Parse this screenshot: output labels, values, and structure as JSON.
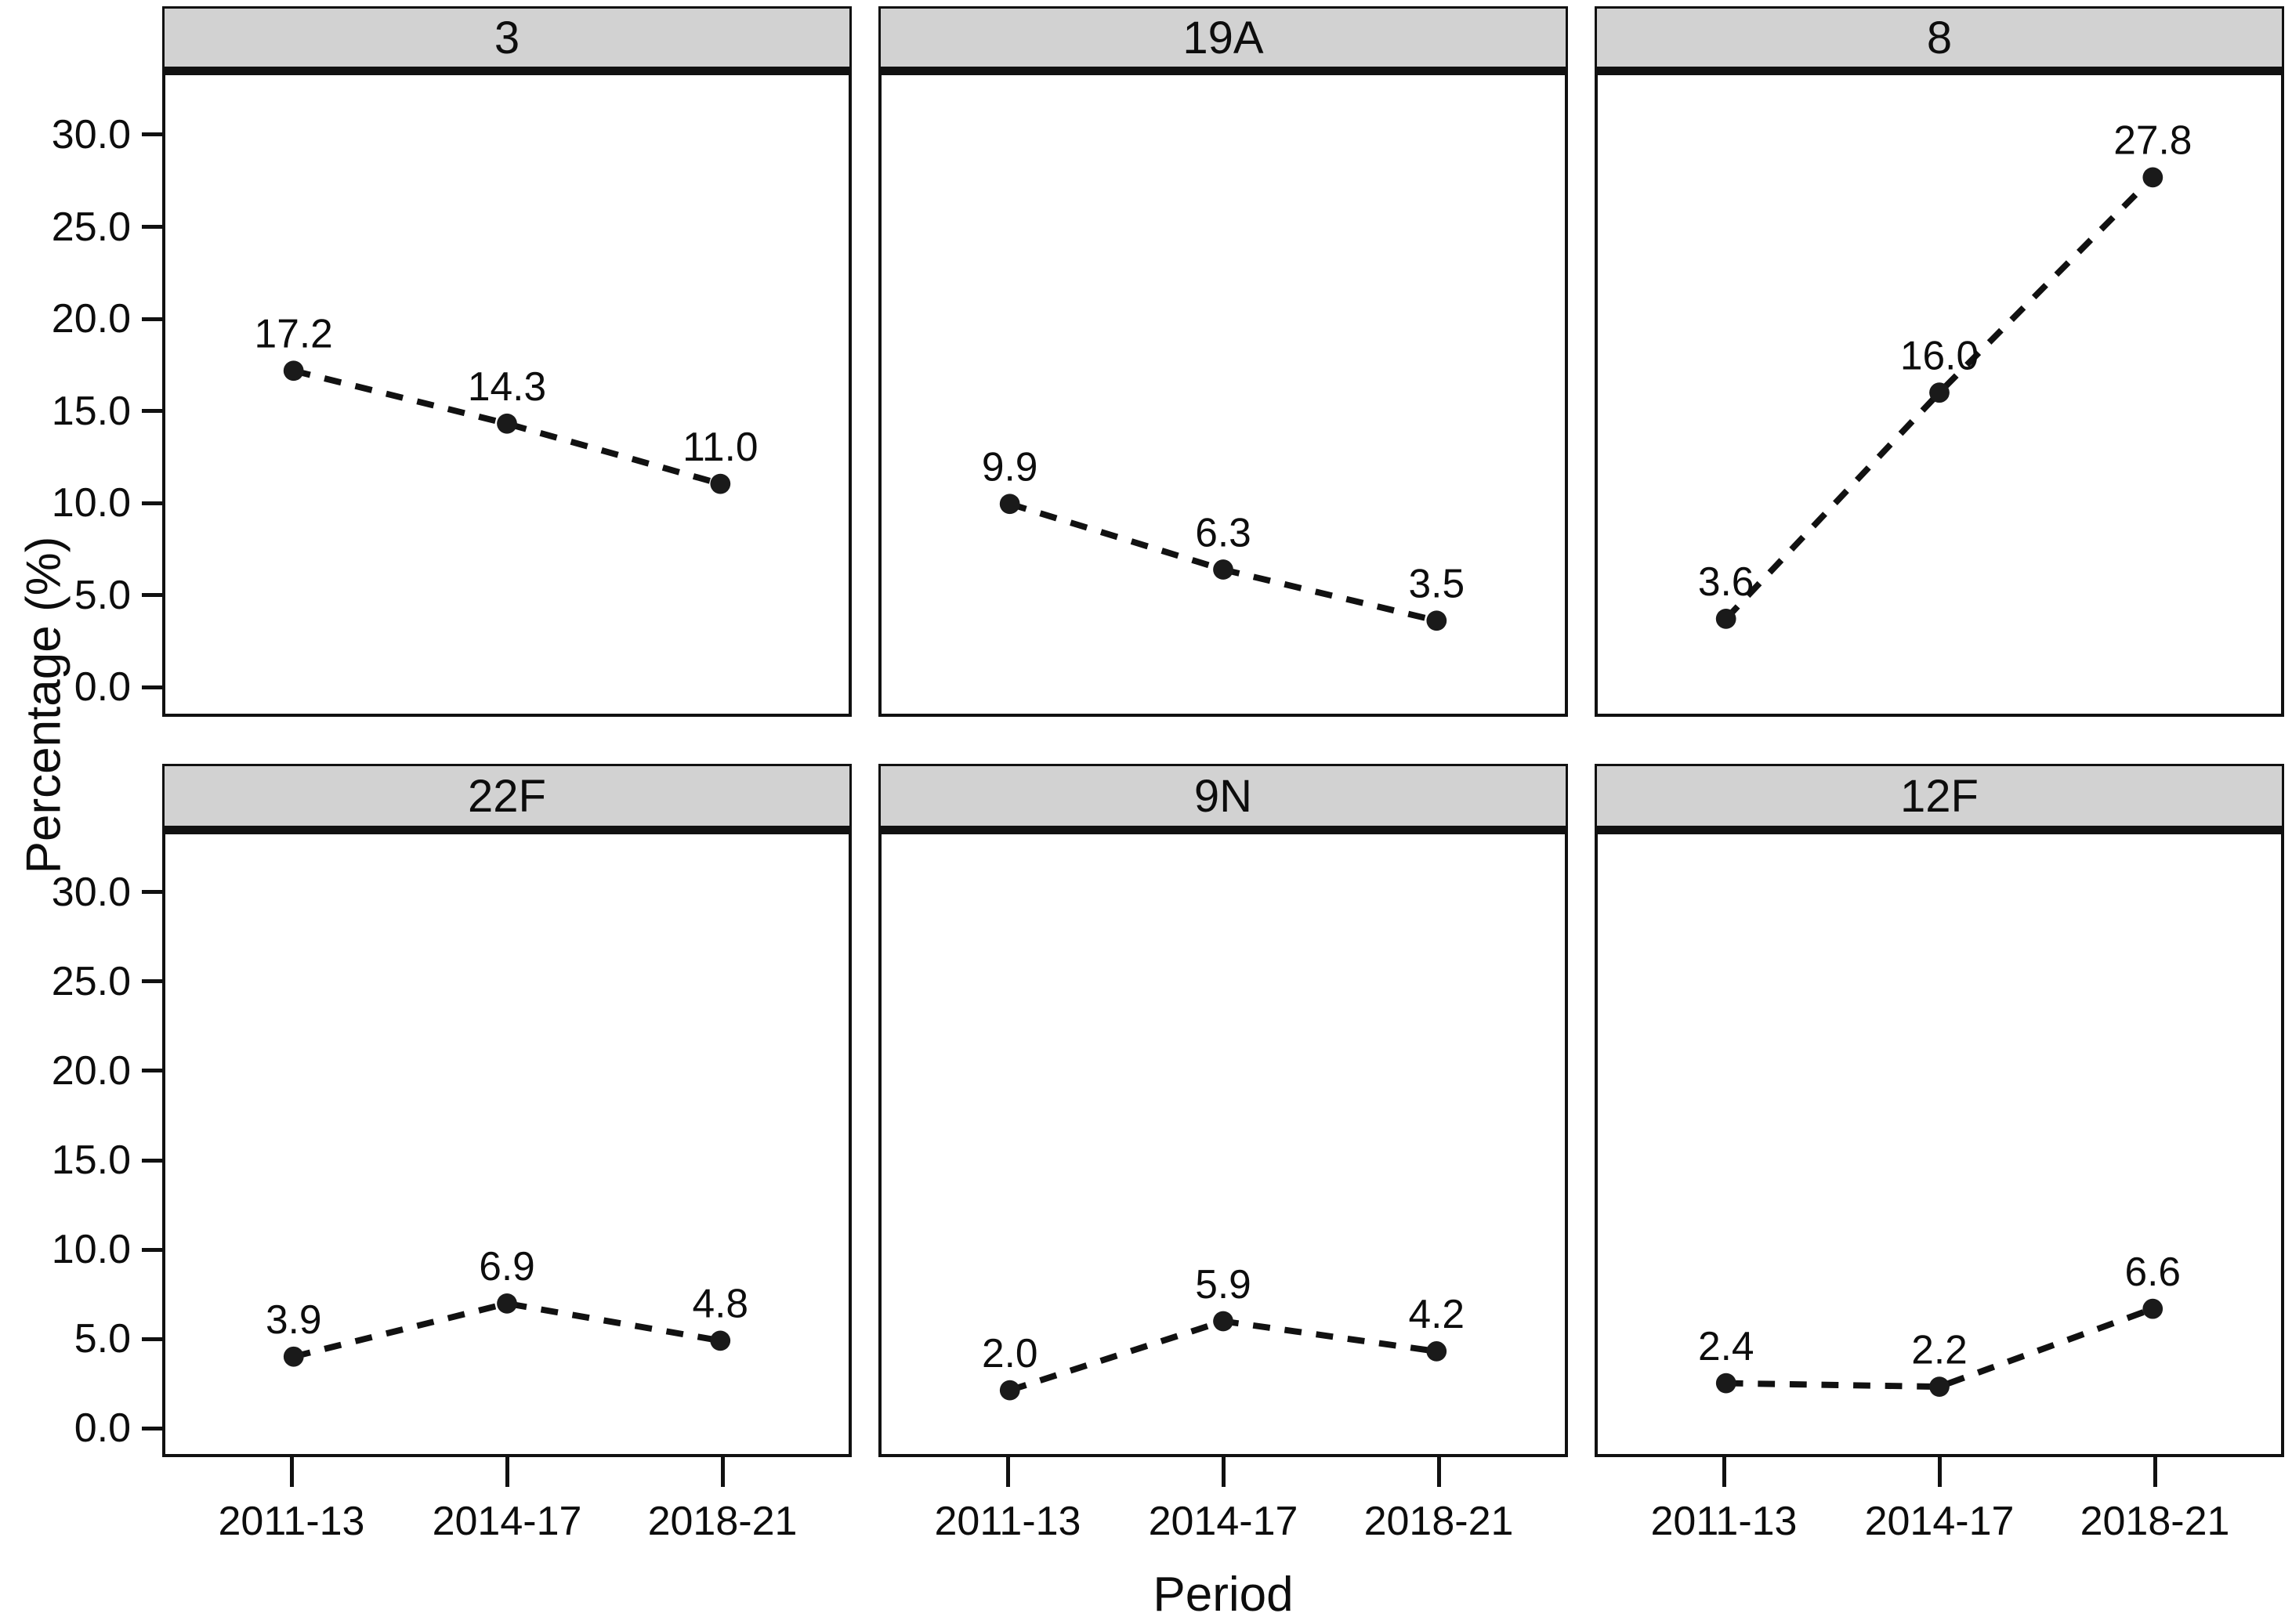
{
  "chart_data": {
    "type": "line",
    "layout": "facet-grid-2x3",
    "categories": [
      "2011-13",
      "2014-17",
      "2018-21"
    ],
    "xlabel": "Period",
    "ylabel": "Percentage (%)",
    "ylim": [
      -1.6,
      33.4
    ],
    "yticks": [
      0,
      5,
      10,
      15,
      20,
      25,
      30
    ],
    "ytick_labels": [
      "0.0",
      "5.0",
      "10.0",
      "15.0",
      "20.0",
      "25.0",
      "30.0"
    ],
    "grid": false,
    "legend_position": "none",
    "line_style": "dashed",
    "marker": "filled-circle",
    "facets": [
      {
        "label": "3",
        "values": [
          17.2,
          14.3,
          11.0
        ]
      },
      {
        "label": "19A",
        "values": [
          9.9,
          6.3,
          3.5
        ]
      },
      {
        "label": "8",
        "values": [
          3.6,
          16.0,
          27.8
        ]
      },
      {
        "label": "22F",
        "values": [
          3.9,
          6.9,
          4.8
        ]
      },
      {
        "label": "9N",
        "values": [
          2.0,
          5.9,
          4.2
        ]
      },
      {
        "label": "12F",
        "values": [
          2.4,
          2.2,
          6.6
        ]
      }
    ],
    "colors": {
      "line": "#111111",
      "marker": "#1a1a1a",
      "strip_fill": "#d2d2d2",
      "border": "#111111",
      "text": "#0d0d0d",
      "background": "#ffffff"
    }
  }
}
